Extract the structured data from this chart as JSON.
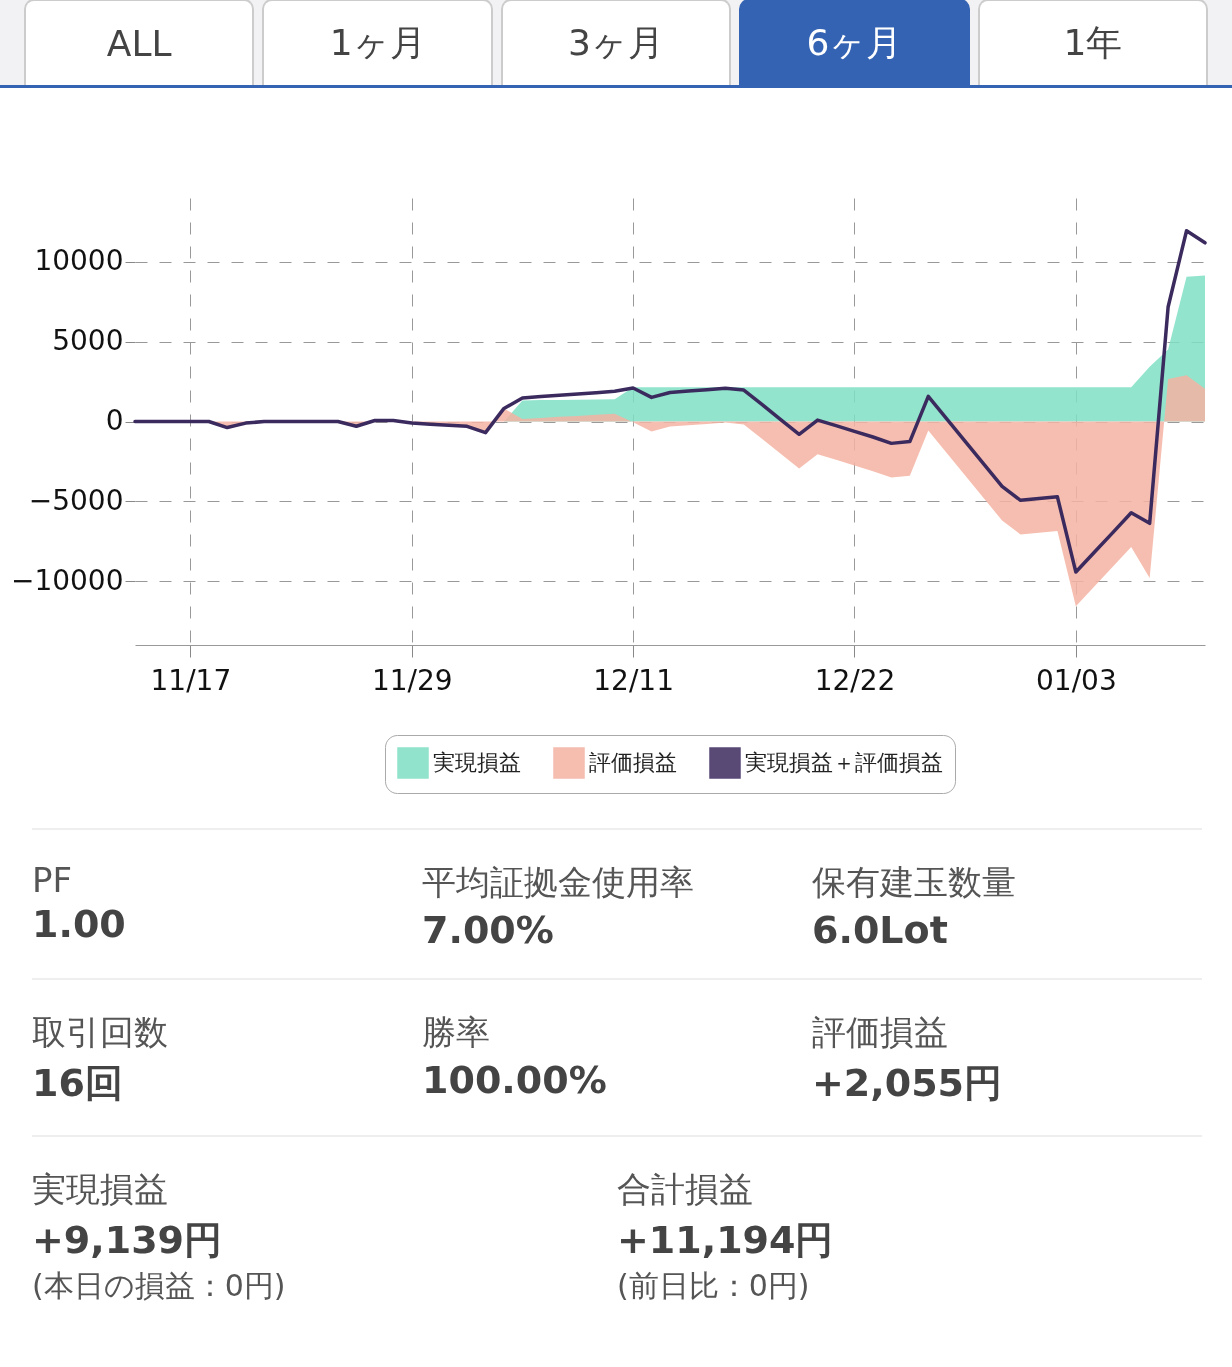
{
  "chart_data": [
    {
      "type": "other",
      "annotations": [
        "ALL",
        "1ヶ月",
        "3ヶ月",
        "6ヶ月",
        "1年"
      ]
    },
    {
      "type": "area",
      "categories": [
        null,
        null,
        null,
        "11/17",
        null,
        null,
        null,
        null,
        null,
        null,
        null,
        null,
        null,
        null,
        null,
        "11/29",
        null,
        null,
        null,
        null,
        null,
        null,
        null,
        null,
        null,
        null,
        null,
        "12/11",
        null,
        null,
        null,
        null,
        null,
        null,
        null,
        null,
        null,
        null,
        null,
        "12/22",
        null,
        null,
        null,
        null,
        null,
        null,
        null,
        null,
        null,
        null,
        null,
        "01/03",
        null,
        null,
        null,
        null,
        null,
        null,
        null
      ],
      "series": [
        {
          "name": "実現損益",
          "color": "#7fdfc4",
          "values": [
            0,
            0,
            0,
            0,
            0,
            0,
            0,
            0,
            0,
            0,
            0,
            0,
            0,
            0,
            0,
            0,
            0,
            0,
            0,
            0,
            0,
            1320,
            1340,
            1350,
            1370,
            1380,
            1400,
            2140,
            2140,
            2140,
            2140,
            2140,
            2140,
            2140,
            2140,
            2140,
            2140,
            2140,
            2140,
            2140,
            2140,
            2140,
            2140,
            2140,
            2140,
            2140,
            2140,
            2140,
            2140,
            2140,
            2140,
            2140,
            2140,
            2140,
            2140,
            3430,
            4510,
            9060,
            9139
          ]
        },
        {
          "name": "評価損益",
          "color": "#f4b3a2",
          "values": [
            0,
            0,
            0,
            0,
            0,
            -380,
            -100,
            0,
            0,
            0,
            0,
            0,
            -300,
            60,
            60,
            -100,
            -170,
            -230,
            -300,
            -700,
            820,
            150,
            220,
            290,
            350,
            420,
            490,
            -40,
            -630,
            -310,
            -230,
            -150,
            -60,
            -190,
            -1090,
            -2020,
            -2940,
            -2050,
            -2400,
            -2760,
            -3110,
            -3510,
            -3400,
            -570,
            -1980,
            -3390,
            -4790,
            -6200,
            -7080,
            -6970,
            -6860,
            -11570,
            -10330,
            -9100,
            -7860,
            -9810,
            2660,
            2890,
            2055
          ]
        },
        {
          "name": "実現損益＋評価損益",
          "type": "line",
          "color": "#3b2a5e",
          "values": [
            0,
            0,
            0,
            0,
            0,
            -380,
            -100,
            0,
            0,
            0,
            0,
            0,
            -300,
            60,
            60,
            -100,
            -170,
            -230,
            -300,
            -700,
            820,
            1470,
            1560,
            1640,
            1720,
            1800,
            1890,
            2100,
            1510,
            1820,
            1910,
            1990,
            2080,
            1970,
            1050,
            120,
            -800,
            90,
            -260,
            -620,
            -970,
            -1370,
            -1260,
            1570,
            160,
            -1250,
            -2650,
            -4060,
            -4940,
            -4830,
            -4720,
            -9430,
            -8190,
            -6960,
            -5720,
            -6380,
            7170,
            11950,
            11194
          ]
        }
      ],
      "ylim": [
        -14000,
        14000
      ],
      "yticks": [
        -10000,
        -5000,
        0,
        5000,
        10000
      ],
      "grid": true,
      "legend": "bottom"
    },
    {
      "type": "other",
      "annotations": [
        "PF",
        "1.00",
        "平均証拠金使用率",
        "7.00%",
        "保有建玉数量",
        "6.0Lot",
        "取引回数",
        "16回",
        "勝率",
        "100.00%",
        "評価損益",
        "+2,055円",
        "実現損益",
        "+9,139円",
        "(本日の損益：0円)",
        "合計損益",
        "+11,194円",
        "(前日比：0円)"
      ]
    }
  ]
}
